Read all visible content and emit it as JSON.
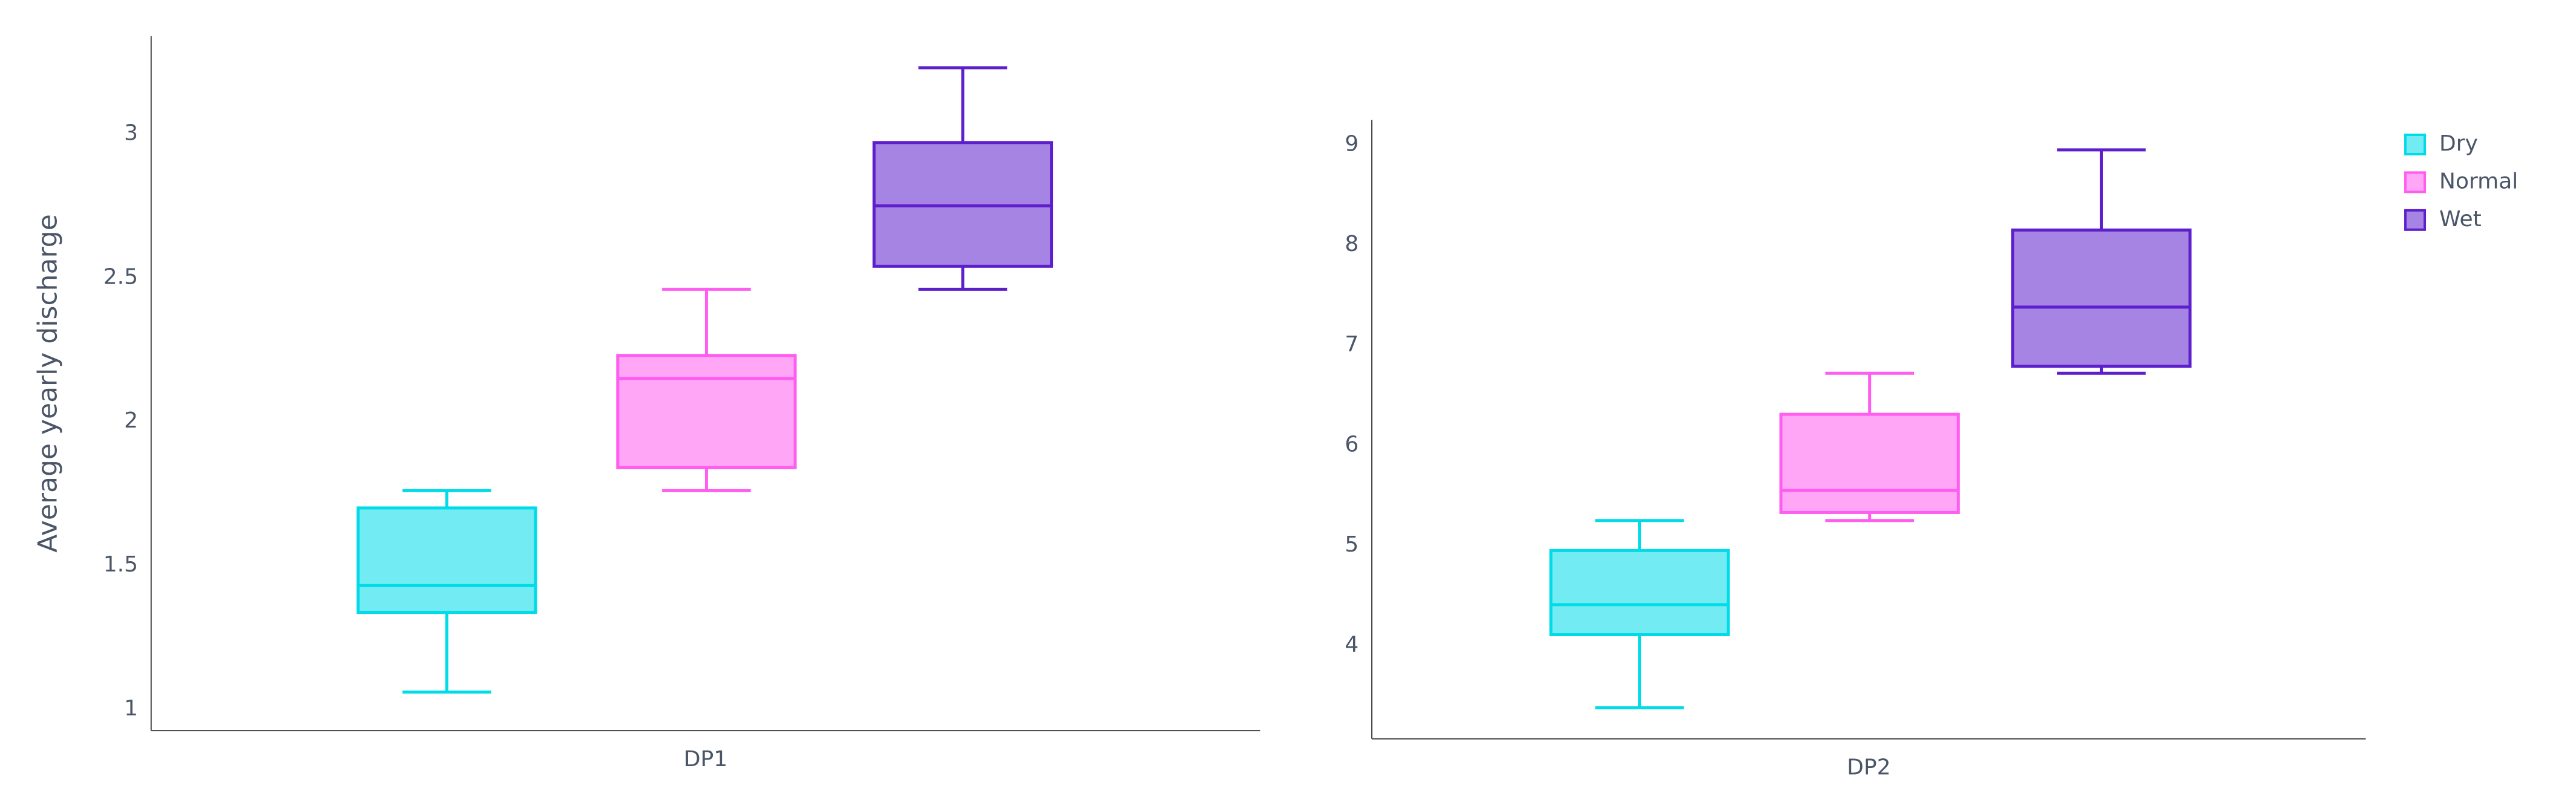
{
  "chart_data": [
    {
      "type": "box",
      "y_label": "Average yearly discharge",
      "categories": [
        "DP1"
      ],
      "ylim": [
        0.926,
        3.34
      ],
      "yticks": [
        1,
        1.5,
        2,
        2.5,
        3
      ],
      "grid": false,
      "series": [
        {
          "color": "#00dbe8",
          "min": 1.06,
          "q1": 1.337,
          "median": 1.43,
          "q3": 1.7,
          "max": 1.76
        },
        {
          "color": "#ff5cf0",
          "min": 1.76,
          "q1": 1.84,
          "median": 2.15,
          "q3": 2.23,
          "max": 2.46
        },
        {
          "color": "#5d1fcc",
          "min": 2.46,
          "q1": 2.54,
          "median": 2.75,
          "q3": 2.97,
          "max": 3.23
        }
      ]
    },
    {
      "type": "box",
      "categories": [
        "DP2"
      ],
      "ylim": [
        3.07,
        9.25
      ],
      "yticks": [
        4,
        5,
        6,
        7,
        8,
        9
      ],
      "grid": false,
      "legend": "top-right",
      "series": [
        {
          "name": "Dry",
          "color": "#00dbe8",
          "min": 3.38,
          "q1": 4.11,
          "median": 4.41,
          "q3": 4.95,
          "max": 5.25
        },
        {
          "name": "Normal",
          "color": "#ff5cf0",
          "min": 5.25,
          "q1": 5.33,
          "median": 5.55,
          "q3": 6.31,
          "max": 6.72
        },
        {
          "name": "Wet",
          "color": "#5d1fcc",
          "min": 6.72,
          "q1": 6.79,
          "median": 7.38,
          "q3": 8.15,
          "max": 8.95
        }
      ]
    }
  ]
}
